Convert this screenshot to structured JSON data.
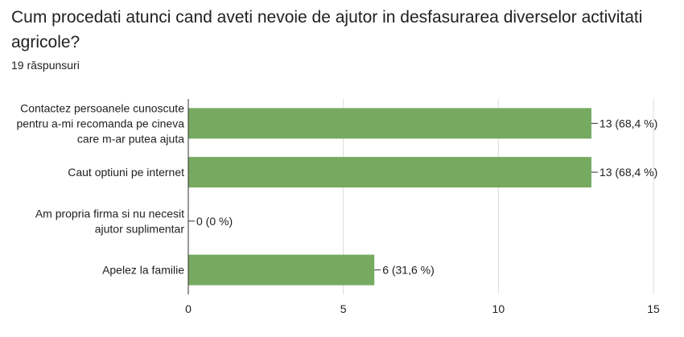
{
  "title": "Cum procedati atunci cand aveti nevoie de ajutor in desfasurarea diverselor activitati agricole?",
  "responses_label": "19 răspunsuri",
  "colors": {
    "bar": "#76aa61",
    "axis": "#333333",
    "grid": "#dddddd",
    "text": "#202124"
  },
  "chart_data": {
    "type": "bar",
    "orientation": "horizontal",
    "categories": [
      [
        "Contactez persoanele cunoscute",
        "pentru a-mi recomanda pe cineva",
        "care m-ar putea ajuta"
      ],
      [
        "Caut optiuni pe internet"
      ],
      [
        "Am propria firma si nu necesit",
        "ajutor suplimentar"
      ],
      [
        "Apelez la familie"
      ]
    ],
    "values": [
      13,
      13,
      0,
      6
    ],
    "data_labels": [
      "13 (68,4 %)",
      "13 (68,4 %)",
      "0 (0 %)",
      "6 (31,6 %)"
    ],
    "xlim": [
      0,
      15
    ],
    "xticks": [
      "0",
      "5",
      "10",
      "15"
    ],
    "grid": true
  }
}
